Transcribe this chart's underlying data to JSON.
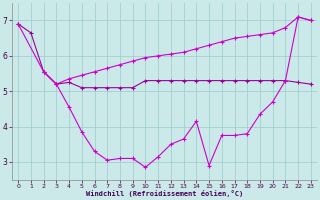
{
  "xlabel": "Windchill (Refroidissement éolien,°C)",
  "background_color": "#cbe9e9",
  "grid_color": "#99cccc",
  "line_color1": "#cc00cc",
  "line_color2": "#990099",
  "xlim": [
    -0.5,
    23.5
  ],
  "ylim": [
    2.5,
    7.5
  ],
  "yticks": [
    3,
    4,
    5,
    6,
    7
  ],
  "xticks": [
    0,
    1,
    2,
    3,
    4,
    5,
    6,
    7,
    8,
    9,
    10,
    11,
    12,
    13,
    14,
    15,
    16,
    17,
    18,
    19,
    20,
    21,
    22,
    23
  ],
  "line1_x": [
    0,
    1,
    2,
    3,
    4,
    5,
    6,
    7,
    8,
    9,
    10,
    11,
    12,
    13,
    14,
    15,
    16,
    17,
    18,
    19,
    20,
    21,
    22,
    23
  ],
  "line1_y": [
    6.9,
    6.65,
    5.55,
    5.2,
    5.25,
    5.1,
    5.1,
    5.1,
    5.1,
    5.1,
    5.3,
    5.3,
    5.3,
    5.3,
    5.3,
    5.3,
    5.3,
    5.3,
    5.3,
    5.3,
    5.3,
    5.3,
    5.25,
    5.2
  ],
  "line2_x": [
    0,
    2,
    3,
    4,
    5,
    6,
    7,
    8,
    9,
    10,
    11,
    12,
    13,
    14,
    15,
    16,
    17,
    18,
    19,
    20,
    21,
    22,
    23
  ],
  "line2_y": [
    6.9,
    5.55,
    5.2,
    4.55,
    3.85,
    3.3,
    3.05,
    3.1,
    3.1,
    2.85,
    3.15,
    3.5,
    3.65,
    4.15,
    2.9,
    3.75,
    3.75,
    3.8,
    4.35,
    4.7,
    5.3,
    7.1,
    7.0
  ],
  "line3_x": [
    2,
    3,
    4,
    5,
    6,
    7,
    8,
    9,
    10,
    11,
    12,
    13,
    14,
    15,
    16,
    17,
    18,
    19,
    20,
    21,
    22,
    23
  ],
  "line3_y": [
    5.55,
    5.2,
    5.35,
    5.45,
    5.55,
    5.65,
    5.75,
    5.85,
    5.95,
    6.0,
    6.05,
    6.1,
    6.2,
    6.3,
    6.4,
    6.5,
    6.55,
    6.6,
    6.65,
    6.8,
    7.1,
    7.0
  ]
}
